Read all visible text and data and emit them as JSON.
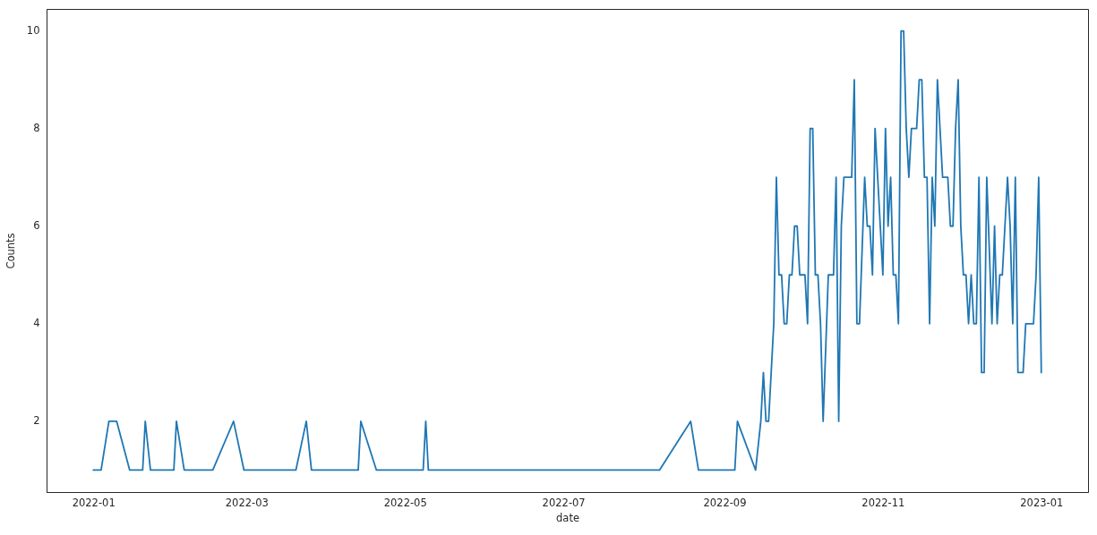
{
  "chart_data": {
    "type": "line",
    "xlabel": "date",
    "ylabel": "Counts",
    "x": [
      "2022-01-01",
      "2022-01-04",
      "2022-01-07",
      "2022-01-10",
      "2022-01-15",
      "2022-01-20",
      "2022-01-21",
      "2022-01-23",
      "2022-02-01",
      "2022-02-02",
      "2022-02-05",
      "2022-02-16",
      "2022-02-24",
      "2022-02-28",
      "2022-03-20",
      "2022-03-24",
      "2022-03-26",
      "2022-04-13",
      "2022-04-14",
      "2022-04-20",
      "2022-05-08",
      "2022-05-09",
      "2022-05-10",
      "2022-08-07",
      "2022-08-19",
      "2022-08-22",
      "2022-09-05",
      "2022-09-06",
      "2022-09-13",
      "2022-09-15",
      "2022-09-16",
      "2022-09-17",
      "2022-09-18",
      "2022-09-19",
      "2022-09-20",
      "2022-09-21",
      "2022-09-22",
      "2022-09-23",
      "2022-09-24",
      "2022-09-25",
      "2022-09-26",
      "2022-09-27",
      "2022-09-28",
      "2022-09-29",
      "2022-09-30",
      "2022-10-01",
      "2022-10-02",
      "2022-10-03",
      "2022-10-04",
      "2022-10-05",
      "2022-10-06",
      "2022-10-07",
      "2022-10-08",
      "2022-10-09",
      "2022-10-11",
      "2022-10-12",
      "2022-10-13",
      "2022-10-14",
      "2022-10-15",
      "2022-10-16",
      "2022-10-17",
      "2022-10-18",
      "2022-10-19",
      "2022-10-20",
      "2022-10-21",
      "2022-10-22",
      "2022-10-23",
      "2022-10-25",
      "2022-10-26",
      "2022-10-27",
      "2022-10-28",
      "2022-10-29",
      "2022-10-30",
      "2022-10-31",
      "2022-11-01",
      "2022-11-02",
      "2022-11-03",
      "2022-11-04",
      "2022-11-05",
      "2022-11-06",
      "2022-11-07",
      "2022-11-08",
      "2022-11-09",
      "2022-11-10",
      "2022-11-11",
      "2022-11-12",
      "2022-11-13",
      "2022-11-14",
      "2022-11-15",
      "2022-11-16",
      "2022-11-17",
      "2022-11-18",
      "2022-11-19",
      "2022-11-20",
      "2022-11-21",
      "2022-11-22",
      "2022-11-23",
      "2022-11-24",
      "2022-11-25",
      "2022-11-26",
      "2022-11-27",
      "2022-11-28",
      "2022-11-29",
      "2022-11-30",
      "2022-12-01",
      "2022-12-02",
      "2022-12-03",
      "2022-12-04",
      "2022-12-05",
      "2022-12-06",
      "2022-12-07",
      "2022-12-08",
      "2022-12-09",
      "2022-12-10",
      "2022-12-11",
      "2022-12-13",
      "2022-12-14",
      "2022-12-15",
      "2022-12-16",
      "2022-12-17",
      "2022-12-18",
      "2022-12-19",
      "2022-12-20",
      "2022-12-21",
      "2022-12-22",
      "2022-12-23",
      "2022-12-24",
      "2022-12-25",
      "2022-12-26",
      "2022-12-27",
      "2022-12-28",
      "2022-12-29",
      "2022-12-30",
      "2022-12-31",
      "2023-01-01"
    ],
    "series": [
      {
        "color": "#1f77b4",
        "values": [
          1,
          1,
          2,
          2,
          1,
          1,
          2,
          1,
          1,
          2,
          1,
          1,
          2,
          1,
          1,
          2,
          1,
          1,
          2,
          1,
          1,
          2,
          1,
          1,
          2,
          1,
          1,
          2,
          1,
          2,
          3,
          2,
          2,
          3,
          4,
          7,
          5,
          5,
          4,
          4,
          5,
          5,
          6,
          6,
          5,
          5,
          5,
          4,
          8,
          8,
          5,
          5,
          4,
          2,
          5,
          5,
          5,
          7,
          2,
          6,
          7,
          7,
          7,
          7,
          9,
          4,
          4,
          7,
          6,
          6,
          5,
          8,
          7,
          6,
          5,
          8,
          6,
          7,
          5,
          5,
          4,
          10,
          10,
          8,
          7,
          8,
          8,
          8,
          9,
          9,
          7,
          7,
          4,
          7,
          6,
          9,
          8,
          7,
          7,
          7,
          6,
          6,
          8,
          9,
          6,
          5,
          5,
          4,
          5,
          4,
          4,
          7,
          3,
          3,
          7,
          4,
          6,
          4,
          5,
          5,
          6,
          7,
          6,
          4,
          7,
          3,
          3,
          3,
          4,
          4,
          4,
          4,
          5,
          7,
          3
        ]
      }
    ],
    "xlim": [
      "2021-12-14",
      "2023-01-19"
    ],
    "xticks": [
      "2022-01",
      "2022-03",
      "2022-05",
      "2022-07",
      "2022-09",
      "2022-11",
      "2023-01"
    ],
    "ylim": [
      0.55,
      10.45
    ],
    "yticks": [
      2,
      4,
      6,
      8,
      10
    ]
  }
}
